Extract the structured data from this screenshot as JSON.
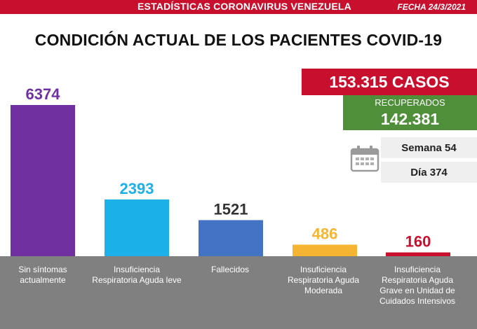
{
  "header": {
    "banner": "ESTADÍSTICAS CORONAVIRUS VENEZUELA",
    "date": "FECHA 24/3/2021"
  },
  "title": "CONDICIÓN ACTUAL DE LOS PACIENTES COVID-19",
  "summary": {
    "cases": "153.315 CASOS",
    "recovered_label": "RECUPERADOS",
    "recovered_value": "142.381",
    "week": "Semana 54",
    "day": "Día 374",
    "icon": "calendar-icon"
  },
  "colors": {
    "banner": "#c8102e",
    "recovered": "#4f8f3a",
    "footer": "#808080"
  },
  "chart_data": {
    "type": "bar",
    "categories": [
      "Sin síntomas actualmente",
      "Insuficiencia Respiratoria Aguda leve",
      "Fallecidos",
      "Insuficiencia Respiratoria Aguda Moderada",
      "Insuficiencia Respiratoria Aguda Grave en Unidad de Cuidados Intensivos"
    ],
    "values": [
      6374,
      2393,
      1521,
      486,
      160
    ],
    "colors": [
      "#7030a0",
      "#1cb0e8",
      "#4472c4",
      "#f5b533",
      "#c8102e"
    ],
    "label_colors": [
      "#7030a0",
      "#1cb0e8",
      "#333333",
      "#f5b533",
      "#c8102e"
    ],
    "ylim": [
      0,
      6374
    ],
    "grid": false,
    "legend": "none"
  }
}
